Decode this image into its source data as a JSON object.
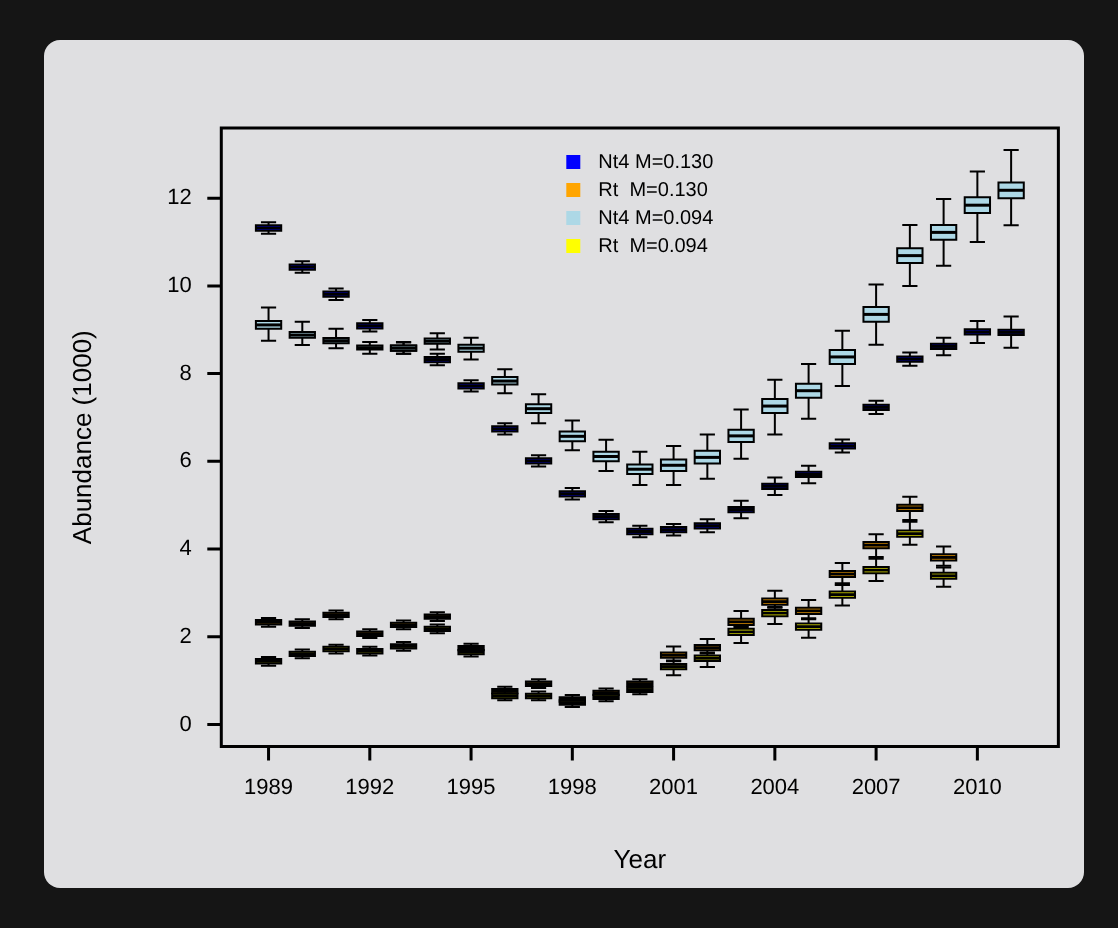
{
  "chart_data": {
    "type": "box",
    "xlabel": "Year",
    "ylabel": "Abundance (1000)",
    "legend": "top",
    "categories": [
      "1989",
      null,
      null,
      "1992",
      null,
      null,
      "1995",
      null,
      null,
      "1998",
      null,
      null,
      "2001",
      null,
      null,
      "2004",
      null,
      null,
      "2007",
      null,
      null,
      "2010",
      null
    ],
    "ylim": [
      -0.5,
      13.6
    ],
    "yticks": [
      0,
      2,
      4,
      6,
      8,
      10,
      12
    ],
    "series": [
      {
        "name": "Nt4 M=0.130",
        "color": "#0000ff",
        "boxes": [
          {
            "low": 11.19,
            "q1": 11.26,
            "median": 11.32,
            "q3": 11.38,
            "high": 11.45
          },
          {
            "low": 10.3,
            "q1": 10.37,
            "median": 10.43,
            "q3": 10.49,
            "high": 10.56
          },
          {
            "low": 9.68,
            "q1": 9.75,
            "median": 9.81,
            "q3": 9.87,
            "high": 9.94
          },
          {
            "low": 8.96,
            "q1": 9.03,
            "median": 9.09,
            "q3": 9.15,
            "high": 9.22
          },
          {
            "low": 8.45,
            "q1": 8.52,
            "median": 8.58,
            "q3": 8.64,
            "high": 8.71
          },
          {
            "low": 8.19,
            "q1": 8.26,
            "median": 8.32,
            "q3": 8.38,
            "high": 8.45
          },
          {
            "low": 7.59,
            "q1": 7.66,
            "median": 7.72,
            "q3": 7.78,
            "high": 7.85
          },
          {
            "low": 6.61,
            "q1": 6.68,
            "median": 6.74,
            "q3": 6.8,
            "high": 6.87
          },
          {
            "low": 5.88,
            "q1": 5.95,
            "median": 6.01,
            "q3": 6.07,
            "high": 6.14
          },
          {
            "low": 5.13,
            "q1": 5.2,
            "median": 5.26,
            "q3": 5.32,
            "high": 5.39
          },
          {
            "low": 4.61,
            "q1": 4.68,
            "median": 4.74,
            "q3": 4.8,
            "high": 4.87
          },
          {
            "low": 4.27,
            "q1": 4.34,
            "median": 4.4,
            "q3": 4.46,
            "high": 4.53
          },
          {
            "low": 4.31,
            "q1": 4.38,
            "median": 4.44,
            "q3": 4.5,
            "high": 4.57
          },
          {
            "low": 4.38,
            "q1": 4.47,
            "median": 4.53,
            "q3": 4.59,
            "high": 4.68
          },
          {
            "low": 4.7,
            "q1": 4.84,
            "median": 4.9,
            "q3": 4.96,
            "high": 5.1
          },
          {
            "low": 5.23,
            "q1": 5.37,
            "median": 5.43,
            "q3": 5.49,
            "high": 5.63
          },
          {
            "low": 5.5,
            "q1": 5.64,
            "median": 5.7,
            "q3": 5.76,
            "high": 5.9
          },
          {
            "low": 6.2,
            "q1": 6.29,
            "median": 6.35,
            "q3": 6.41,
            "high": 6.5
          },
          {
            "low": 7.08,
            "q1": 7.17,
            "median": 7.23,
            "q3": 7.29,
            "high": 7.38
          },
          {
            "low": 8.18,
            "q1": 8.27,
            "median": 8.33,
            "q3": 8.39,
            "high": 8.48
          },
          {
            "low": 8.42,
            "q1": 8.56,
            "median": 8.62,
            "q3": 8.68,
            "high": 8.82
          },
          {
            "low": 8.7,
            "q1": 8.89,
            "median": 8.95,
            "q3": 9.01,
            "high": 9.2
          },
          {
            "low": 8.59,
            "q1": 8.88,
            "median": 8.94,
            "q3": 9.0,
            "high": 9.3
          }
        ]
      },
      {
        "name": "Rt  M=0.130",
        "color": "#ffa500",
        "boxes": [
          {
            "low": 2.23,
            "q1": 2.28,
            "median": 2.33,
            "q3": 2.38,
            "high": 2.43
          },
          {
            "low": 2.2,
            "q1": 2.25,
            "median": 2.3,
            "q3": 2.35,
            "high": 2.4
          },
          {
            "low": 2.4,
            "q1": 2.45,
            "median": 2.5,
            "q3": 2.55,
            "high": 2.6
          },
          {
            "low": 1.97,
            "q1": 2.02,
            "median": 2.07,
            "q3": 2.12,
            "high": 2.17
          },
          {
            "low": 2.17,
            "q1": 2.22,
            "median": 2.27,
            "q3": 2.32,
            "high": 2.37
          },
          {
            "low": 2.36,
            "q1": 2.41,
            "median": 2.46,
            "q3": 2.51,
            "high": 2.56
          },
          {
            "low": 1.64,
            "q1": 1.69,
            "median": 1.74,
            "q3": 1.79,
            "high": 1.84
          },
          {
            "low": 0.66,
            "q1": 0.71,
            "median": 0.76,
            "q3": 0.81,
            "high": 0.86
          },
          {
            "low": 0.83,
            "q1": 0.88,
            "median": 0.93,
            "q3": 0.98,
            "high": 1.03
          },
          {
            "low": 0.47,
            "q1": 0.52,
            "median": 0.57,
            "q3": 0.62,
            "high": 0.67
          },
          {
            "low": 0.62,
            "q1": 0.67,
            "median": 0.72,
            "q3": 0.77,
            "high": 0.82
          },
          {
            "low": 0.83,
            "q1": 0.88,
            "median": 0.93,
            "q3": 0.98,
            "high": 1.03
          },
          {
            "low": 1.46,
            "q1": 1.52,
            "median": 1.58,
            "q3": 1.64,
            "high": 1.78
          },
          {
            "low": 1.64,
            "q1": 1.69,
            "median": 1.75,
            "q3": 1.81,
            "high": 1.95
          },
          {
            "low": 2.24,
            "q1": 2.27,
            "median": 2.34,
            "q3": 2.41,
            "high": 2.59
          },
          {
            "low": 2.68,
            "q1": 2.73,
            "median": 2.8,
            "q3": 2.87,
            "high": 3.05
          },
          {
            "low": 2.42,
            "q1": 2.52,
            "median": 2.59,
            "q3": 2.66,
            "high": 2.84
          },
          {
            "low": 3.22,
            "q1": 3.36,
            "median": 3.43,
            "q3": 3.5,
            "high": 3.68
          },
          {
            "low": 3.82,
            "q1": 4.02,
            "median": 4.09,
            "q3": 4.16,
            "high": 4.34
          },
          {
            "low": 4.66,
            "q1": 4.87,
            "median": 4.94,
            "q3": 5.01,
            "high": 5.19
          },
          {
            "low": 3.62,
            "q1": 3.74,
            "median": 3.81,
            "q3": 3.88,
            "high": 4.06
          },
          null,
          null
        ]
      },
      {
        "name": "Nt4 M=0.094",
        "color": "#add8e6",
        "boxes": [
          {
            "low": 8.75,
            "q1": 9.02,
            "median": 9.11,
            "q3": 9.2,
            "high": 9.51
          },
          {
            "low": 8.65,
            "q1": 8.82,
            "median": 8.88,
            "q3": 8.95,
            "high": 9.18
          },
          {
            "low": 8.58,
            "q1": 8.69,
            "median": 8.75,
            "q3": 8.81,
            "high": 9.02
          },
          {
            "low": 8.45,
            "q1": 8.55,
            "median": 8.59,
            "q3": 8.64,
            "high": 8.72
          },
          {
            "low": 8.45,
            "q1": 8.52,
            "median": 8.58,
            "q3": 8.64,
            "high": 8.72
          },
          {
            "low": 8.55,
            "q1": 8.68,
            "median": 8.74,
            "q3": 8.8,
            "high": 8.92
          },
          {
            "low": 8.32,
            "q1": 8.5,
            "median": 8.58,
            "q3": 8.66,
            "high": 8.82
          },
          {
            "low": 7.55,
            "q1": 7.75,
            "median": 7.83,
            "q3": 7.92,
            "high": 8.1
          },
          {
            "low": 6.87,
            "q1": 7.1,
            "median": 7.2,
            "q3": 7.3,
            "high": 7.53
          },
          {
            "low": 6.25,
            "q1": 6.46,
            "median": 6.57,
            "q3": 6.68,
            "high": 6.93
          },
          {
            "low": 5.78,
            "q1": 6.0,
            "median": 6.11,
            "q3": 6.22,
            "high": 6.49
          },
          {
            "low": 5.46,
            "q1": 5.71,
            "median": 5.82,
            "q3": 5.93,
            "high": 6.22
          },
          {
            "low": 5.46,
            "q1": 5.78,
            "median": 5.91,
            "q3": 6.04,
            "high": 6.35
          },
          {
            "low": 5.6,
            "q1": 5.95,
            "median": 6.09,
            "q3": 6.24,
            "high": 6.61
          },
          {
            "low": 6.06,
            "q1": 6.44,
            "median": 6.58,
            "q3": 6.72,
            "high": 7.18
          },
          {
            "low": 6.61,
            "q1": 7.1,
            "median": 7.26,
            "q3": 7.42,
            "high": 7.86
          },
          {
            "low": 6.97,
            "q1": 7.45,
            "median": 7.61,
            "q3": 7.77,
            "high": 8.22
          },
          {
            "low": 7.72,
            "q1": 8.22,
            "median": 8.38,
            "q3": 8.54,
            "high": 8.98
          },
          {
            "low": 8.66,
            "q1": 9.18,
            "median": 9.35,
            "q3": 9.52,
            "high": 10.03
          },
          {
            "low": 10.0,
            "q1": 10.52,
            "median": 10.69,
            "q3": 10.86,
            "high": 11.39
          },
          {
            "low": 10.46,
            "q1": 11.05,
            "median": 11.22,
            "q3": 11.39,
            "high": 11.98
          },
          {
            "low": 11.0,
            "q1": 11.66,
            "median": 11.84,
            "q3": 12.02,
            "high": 12.61
          },
          {
            "low": 11.38,
            "q1": 12.0,
            "median": 12.18,
            "q3": 12.36,
            "high": 13.1
          }
        ]
      },
      {
        "name": "Rt  M=0.094",
        "color": "#ffff00",
        "boxes": [
          {
            "low": 1.34,
            "q1": 1.39,
            "median": 1.44,
            "q3": 1.49,
            "high": 1.54
          },
          {
            "low": 1.51,
            "q1": 1.56,
            "median": 1.61,
            "q3": 1.66,
            "high": 1.71
          },
          {
            "low": 1.62,
            "q1": 1.67,
            "median": 1.72,
            "q3": 1.77,
            "high": 1.82
          },
          {
            "low": 1.57,
            "q1": 1.62,
            "median": 1.67,
            "q3": 1.72,
            "high": 1.77
          },
          {
            "low": 1.68,
            "q1": 1.73,
            "median": 1.78,
            "q3": 1.83,
            "high": 1.88
          },
          {
            "low": 2.08,
            "q1": 2.13,
            "median": 2.18,
            "q3": 2.23,
            "high": 2.28
          },
          {
            "low": 1.55,
            "q1": 1.6,
            "median": 1.65,
            "q3": 1.7,
            "high": 1.75
          },
          {
            "low": 0.55,
            "q1": 0.6,
            "median": 0.65,
            "q3": 0.7,
            "high": 0.75
          },
          {
            "low": 0.55,
            "q1": 0.6,
            "median": 0.65,
            "q3": 0.7,
            "high": 0.75
          },
          {
            "low": 0.4,
            "q1": 0.45,
            "median": 0.5,
            "q3": 0.55,
            "high": 0.6
          },
          {
            "low": 0.53,
            "q1": 0.58,
            "median": 0.63,
            "q3": 0.68,
            "high": 0.73
          },
          {
            "low": 0.69,
            "q1": 0.74,
            "median": 0.79,
            "q3": 0.84,
            "high": 0.89
          },
          {
            "low": 1.12,
            "q1": 1.26,
            "median": 1.32,
            "q3": 1.38,
            "high": 1.44
          },
          {
            "low": 1.31,
            "q1": 1.45,
            "median": 1.51,
            "q3": 1.57,
            "high": 1.62
          },
          {
            "low": 1.86,
            "q1": 2.04,
            "median": 2.11,
            "q3": 2.18,
            "high": 2.21
          },
          {
            "low": 2.29,
            "q1": 2.47,
            "median": 2.54,
            "q3": 2.61,
            "high": 2.66
          },
          {
            "low": 1.98,
            "q1": 2.16,
            "median": 2.23,
            "q3": 2.3,
            "high": 2.4
          },
          {
            "low": 2.71,
            "q1": 2.89,
            "median": 2.96,
            "q3": 3.03,
            "high": 3.18
          },
          {
            "low": 3.27,
            "q1": 3.45,
            "median": 3.52,
            "q3": 3.59,
            "high": 3.78
          },
          {
            "low": 4.1,
            "q1": 4.28,
            "median": 4.35,
            "q3": 4.42,
            "high": 4.62
          },
          {
            "low": 3.14,
            "q1": 3.32,
            "median": 3.39,
            "q3": 3.46,
            "high": 3.58
          },
          null,
          null
        ]
      }
    ]
  }
}
